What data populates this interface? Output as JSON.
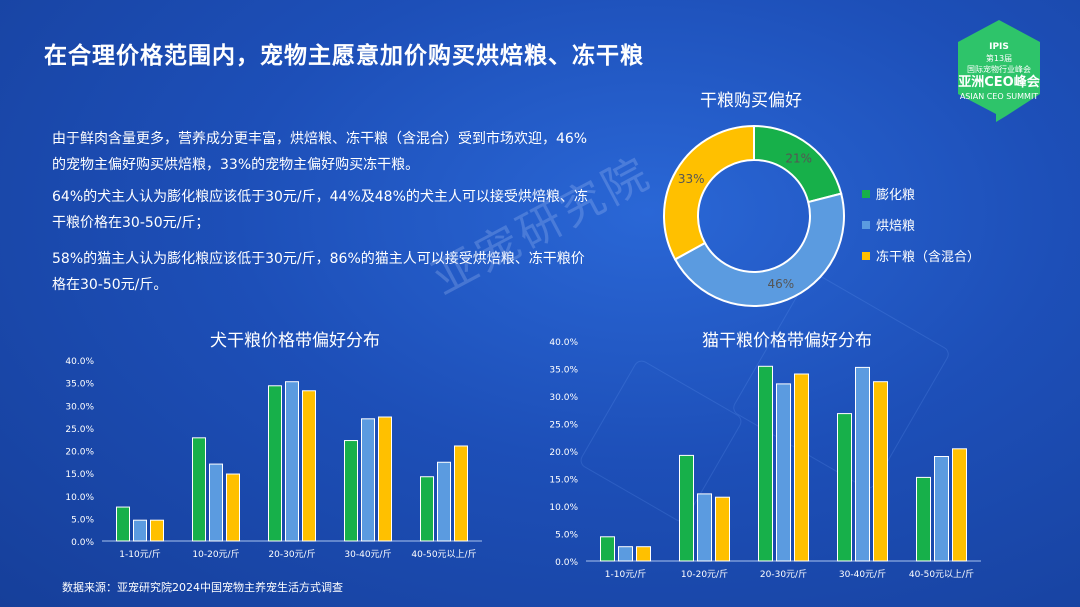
{
  "page": {
    "title": "在合理价格范围内，宠物主愿意加价购买烘焙粮、冻干粮",
    "paragraphs": [
      "由于鲜肉含量更多，营养成分更丰富，烘焙粮、冻干粮（含混合）受到市场欢迎，46%的宠物主偏好购买烘焙粮，33%的宠物主偏好购买冻干粮。",
      "64%的犬主人认为膨化粮应该低于30元/斤，44%及48%的犬主人可以接受烘焙粮、冻干粮价格在30-50元/斤；",
      "58%的猫主人认为膨化粮应该低于30元/斤，86%的猫主人可以接受烘焙粮、冻干粮价格在30-50元/斤。"
    ],
    "watermark": "亚宠研究院",
    "source": "数据来源：亚宠研究院2024中国宠物主养宠生活方式调查",
    "badge": {
      "line1": "IPIS",
      "line2": "第13届",
      "line3": "国际宠物行业峰会",
      "line4": "亚洲CEO峰会",
      "line5": "ASIAN CEO SUMMIT"
    }
  },
  "colors": {
    "green": "#17b04a",
    "blue": "#5b9be0",
    "yellow": "#ffc000",
    "badge": "#2ec46a"
  },
  "chart_data": [
    {
      "type": "pie",
      "title": "干粮购买偏好",
      "labels": [
        "膨化粮",
        "烘焙粮",
        "冻干粮（含混合）"
      ],
      "values": [
        21,
        46,
        33
      ],
      "value_labels": [
        "21%",
        "46%",
        "33%"
      ],
      "legend": "right"
    },
    {
      "type": "bar",
      "title": "犬干粮价格带偏好分布",
      "categories": [
        "1-10元/斤",
        "10-20元/斤",
        "20-30元/斤",
        "30-40元/斤",
        "40-50元以上/斤"
      ],
      "series": [
        {
          "name": "膨化粮",
          "values": [
            7.5,
            22.8,
            34.3,
            22.2,
            14.2
          ]
        },
        {
          "name": "烘焙粮",
          "values": [
            4.6,
            17.0,
            35.2,
            27.0,
            17.4
          ]
        },
        {
          "name": "冻干粮（含混合）",
          "values": [
            4.6,
            14.8,
            33.2,
            27.4,
            21.0
          ]
        }
      ],
      "ylim": [
        0,
        40
      ],
      "yticks": [
        "0.0%",
        "5.0%",
        "10.0%",
        "15.0%",
        "20.0%",
        "25.0%",
        "30.0%",
        "35.0%",
        "40.0%"
      ],
      "grid": false
    },
    {
      "type": "bar",
      "title": "猫干粮价格带偏好分布",
      "categories": [
        "1-10元/斤",
        "10-20元/斤",
        "20-30元/斤",
        "30-40元/斤",
        "40-50元以上/斤"
      ],
      "series": [
        {
          "name": "膨化粮",
          "values": [
            4.4,
            19.2,
            35.4,
            26.8,
            15.2
          ]
        },
        {
          "name": "烘焙粮",
          "values": [
            2.6,
            12.2,
            32.2,
            35.2,
            19.0
          ]
        },
        {
          "name": "冻干粮（含混合）",
          "values": [
            2.6,
            11.6,
            34.0,
            32.6,
            20.4
          ]
        }
      ],
      "ylim": [
        0,
        40
      ],
      "yticks": [
        "0.0%",
        "5.0%",
        "10.0%",
        "15.0%",
        "20.0%",
        "25.0%",
        "30.0%",
        "35.0%",
        "40.0%"
      ],
      "grid": false
    }
  ]
}
